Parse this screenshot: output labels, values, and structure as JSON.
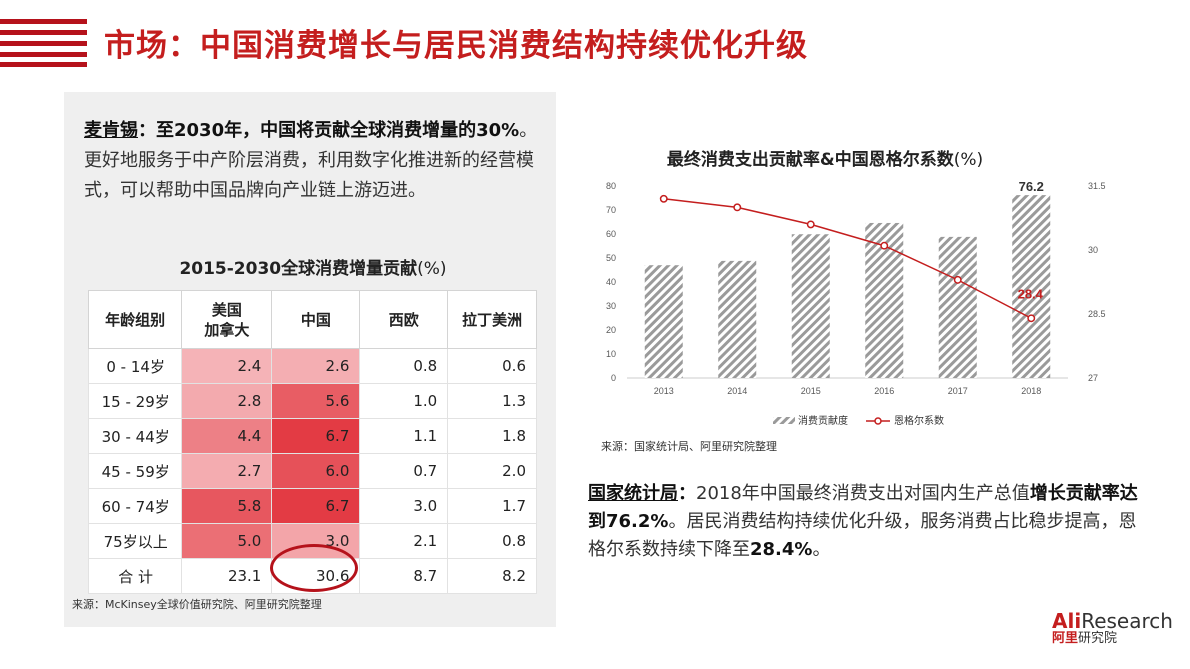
{
  "header": {
    "title": "市场：中国消费增长与居民消费结构持续优化升级"
  },
  "left": {
    "quote_source": "麦肯锡",
    "quote_sep": "：",
    "quote_strong": "至2030年，中国将贡献全球消费增量的30%",
    "quote_rest": "。更好地服务于中产阶层消费，利用数字化推进新的经营模式，可以帮助中国品牌向产业链上游迈进。",
    "table_title": "2015-2030全球消费增量贡献",
    "table_unit": "(%)",
    "source": "来源：McKinsey全球价值研究院、阿里研究院整理"
  },
  "right": {
    "chart_title": "最终消费支出贡献率&中国恩格尔系数",
    "chart_unit": "(%)",
    "source": "来源：国家统计局、阿里研究院整理",
    "text_source": "国家统计局",
    "text_sep": "：",
    "text_1": "2018年中国最终消费支出对国内生产总值",
    "text_strong": "增长贡献率达到76.2%",
    "text_2": "。居民消费结构持续优化升级，服务消费占比稳步提高，恩格尔系数持续下降至",
    "text_strong2": "28.4%",
    "text_end": "。"
  },
  "logo": {
    "en_bold": "Ali",
    "en": "Research",
    "cn_bold": "阿里",
    "cn": "研究院"
  },
  "table_data": {
    "headers": [
      "年龄组别",
      "美国\n加拿大",
      "中国",
      "西欧",
      "拉丁美洲"
    ],
    "rows": [
      {
        "age": "0 - 14岁",
        "values": [
          "2.4",
          "2.6",
          "0.8",
          "0.6"
        ]
      },
      {
        "age": "15 - 29岁",
        "values": [
          "2.8",
          "5.6",
          "1.0",
          "1.3"
        ]
      },
      {
        "age": "30 - 44岁",
        "values": [
          "4.4",
          "6.7",
          "1.1",
          "1.8"
        ]
      },
      {
        "age": "45 - 59岁",
        "values": [
          "2.7",
          "6.0",
          "0.7",
          "2.0"
        ]
      },
      {
        "age": "60 - 74岁",
        "values": [
          "5.8",
          "6.7",
          "3.0",
          "1.7"
        ]
      },
      {
        "age": "75岁以上",
        "values": [
          "5.0",
          "3.0",
          "2.1",
          "0.8"
        ]
      },
      {
        "age": "合 计",
        "values": [
          "23.1",
          "30.6",
          "8.7",
          "8.2"
        ]
      }
    ]
  },
  "chart_data": {
    "type": "bar+line",
    "categories": [
      "2013",
      "2014",
      "2015",
      "2016",
      "2017",
      "2018"
    ],
    "series": [
      {
        "name": "消费贡献度",
        "type": "bar",
        "axis": "left",
        "values": [
          47.0,
          48.8,
          59.9,
          64.6,
          58.8,
          76.2
        ]
      },
      {
        "name": "恩格尔系数",
        "type": "line",
        "axis": "right",
        "values": [
          31.2,
          31.0,
          30.6,
          30.1,
          29.3,
          28.4
        ]
      }
    ],
    "data_labels": {
      "bar_last": "76.2",
      "line_last": "28.4"
    },
    "y_left": {
      "ylim": [
        0,
        80
      ],
      "ticks": [
        "0",
        "10",
        "20",
        "30",
        "40",
        "50",
        "60",
        "70",
        "80"
      ]
    },
    "y_right": {
      "ylim": [
        27,
        31.5
      ],
      "ticks": [
        "27",
        "28.5",
        "30",
        "31.5"
      ]
    },
    "legend": "bottom",
    "colors": {
      "bar": "#9a9a9a",
      "line": "#c41e1e"
    }
  },
  "colors": {
    "accent": "#c41e1e",
    "heat": "#e23b44"
  }
}
